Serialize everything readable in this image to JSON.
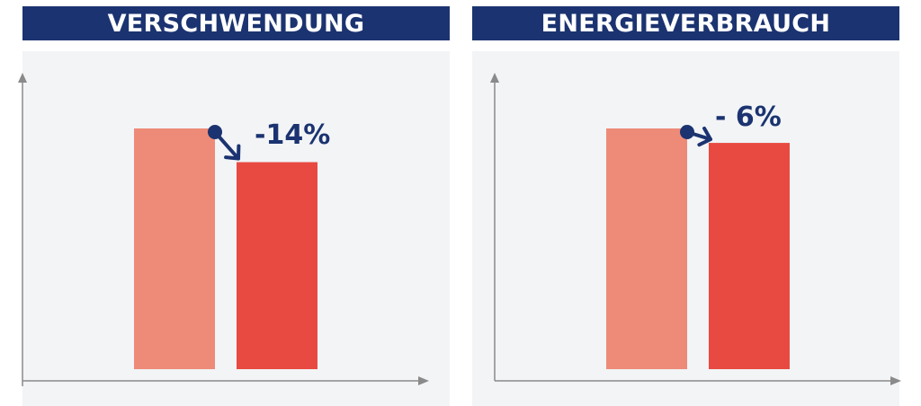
{
  "chart_data": [
    {
      "type": "bar",
      "title": "VERSCHWENDUNG",
      "values": [
        100,
        86
      ],
      "change_label": "-14%",
      "colors": [
        "#ed8b78",
        "#e84a41"
      ],
      "ylim": [
        0,
        110
      ]
    },
    {
      "type": "bar",
      "title": "ENERGIEVERBRAUCH",
      "values": [
        100,
        94
      ],
      "change_label": "- 6%",
      "colors": [
        "#ed8b78",
        "#e84a41"
      ],
      "ylim": [
        0,
        110
      ]
    }
  ],
  "colors": {
    "title_bar": "#1b3370",
    "chart_background": "#f2f4f6",
    "axis": "#8a8a8a",
    "arrow": "#1b3370"
  }
}
